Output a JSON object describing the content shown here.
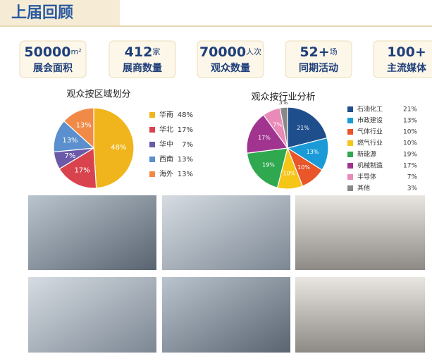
{
  "header": {
    "title": "上届回顾"
  },
  "stats": [
    {
      "value": "50000",
      "unit": "m²",
      "label": "展会面积"
    },
    {
      "value": "412",
      "unit": "家",
      "label": "展商数量"
    },
    {
      "value": "70000",
      "unit": "人次",
      "label": "观众数量"
    },
    {
      "value": "52+",
      "unit": "场",
      "label": "同期活动"
    },
    {
      "value": "100+",
      "unit": "",
      "label": "主流媒体"
    }
  ],
  "chart_data": [
    {
      "type": "pie",
      "title": "观众按区域划分",
      "categories": [
        "华南",
        "华北",
        "华中",
        "西南",
        "海外"
      ],
      "values": [
        48,
        17,
        7,
        13,
        13
      ],
      "value_labels": [
        "48%",
        "17%",
        "7%",
        "13%",
        "13%"
      ],
      "colors": [
        "#f0b51c",
        "#d9434e",
        "#6a5aa8",
        "#5b8fcd",
        "#f08a46"
      ]
    },
    {
      "type": "pie",
      "title": "观众按行业分析",
      "categories": [
        "石油化工",
        "市政建设",
        "气体行业",
        "燃气行业",
        "新能源",
        "机械制造",
        "半导体",
        "其他"
      ],
      "values": [
        21,
        13,
        10,
        10,
        19,
        17,
        7,
        3
      ],
      "value_labels": [
        "21%",
        "13%",
        "10%",
        "10%",
        "19%",
        "17%",
        "7%",
        "3%"
      ],
      "colors": [
        "#1f4e8c",
        "#1a9bd7",
        "#e8562a",
        "#f5c518",
        "#2fa84f",
        "#a0348f",
        "#e98ab8",
        "#888888"
      ]
    }
  ]
}
